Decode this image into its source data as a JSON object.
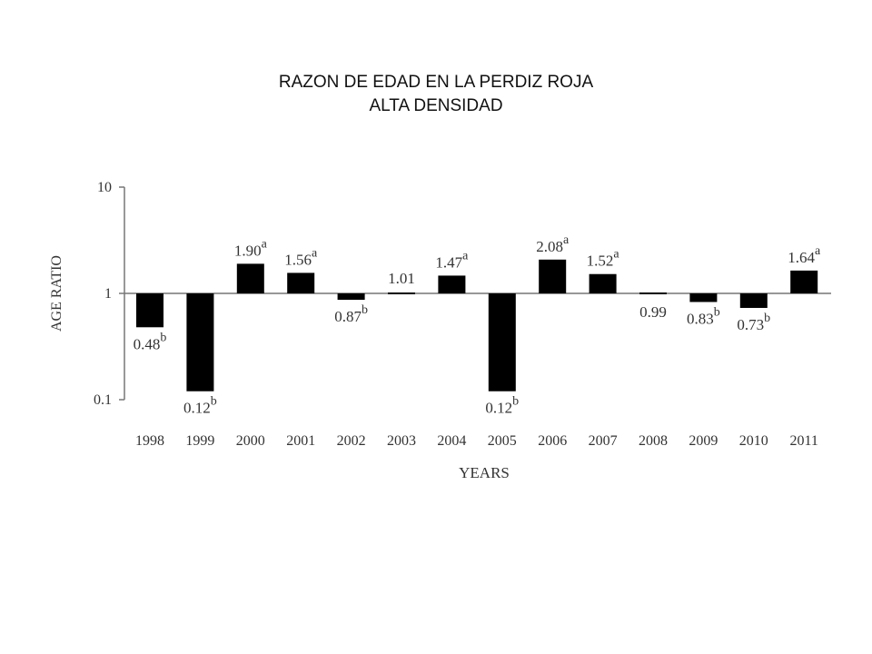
{
  "title_lines": [
    "RAZON DE EDAD EN LA PERDIZ ROJA",
    "ALTA DENSIDAD"
  ],
  "chart_data": {
    "type": "bar",
    "scale": "log",
    "baseline": 1,
    "xlabel": "YEARS",
    "ylabel": "AGE RATIO",
    "ylim": [
      0.1,
      10
    ],
    "yticks": [
      {
        "value": 10,
        "label": "10"
      },
      {
        "value": 1,
        "label": "1"
      },
      {
        "value": 0.1,
        "label": "0.1"
      }
    ],
    "categories": [
      "1998",
      "1999",
      "2000",
      "2001",
      "2002",
      "2003",
      "2004",
      "2005",
      "2006",
      "2007",
      "2008",
      "2009",
      "2010",
      "2011"
    ],
    "values": [
      0.48,
      0.12,
      1.9,
      1.56,
      0.87,
      1.01,
      1.47,
      0.12,
      2.08,
      1.52,
      0.99,
      0.83,
      0.73,
      1.64
    ],
    "value_labels": [
      "0.48",
      "0.12",
      "1.90",
      "1.56",
      "0.87",
      "1.01",
      "1.47",
      "0.12",
      "2.08",
      "1.52",
      "0.99",
      "0.83",
      "0.73",
      "1.64"
    ],
    "superscripts": [
      "b",
      "b",
      "a",
      "a",
      "b",
      "",
      "a",
      "b",
      "a",
      "a",
      "",
      "b",
      "b",
      "a"
    ],
    "bar_color": "#000000",
    "axis_color": "#777777",
    "grid": false,
    "legend": "none"
  }
}
